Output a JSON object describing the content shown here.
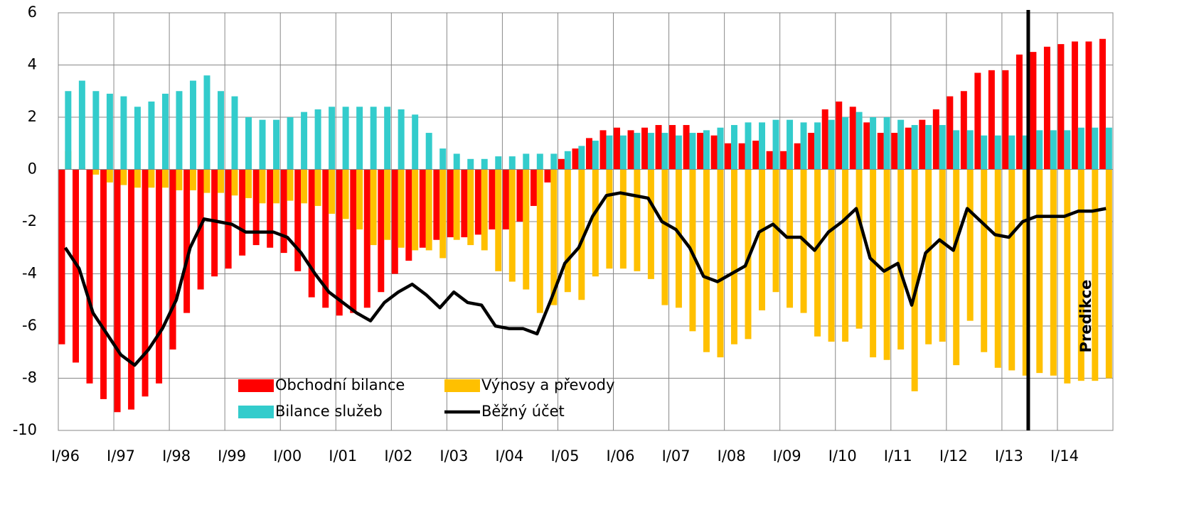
{
  "chart_data": {
    "type": "bar",
    "categories": [
      "I/96",
      null,
      null,
      null,
      "I/97",
      null,
      null,
      null,
      "I/98",
      null,
      null,
      null,
      "I/99",
      null,
      null,
      null,
      "I/00",
      null,
      null,
      null,
      "I/01",
      null,
      null,
      null,
      "I/02",
      null,
      null,
      null,
      "I/03",
      null,
      null,
      null,
      "I/04",
      null,
      null,
      null,
      "I/05",
      null,
      null,
      null,
      "I/06",
      null,
      null,
      null,
      "I/07",
      null,
      null,
      null,
      "I/08",
      null,
      null,
      null,
      "I/09",
      null,
      null,
      null,
      "I/10",
      null,
      null,
      null,
      "I/11",
      null,
      null,
      null,
      "I/12",
      null,
      null,
      null,
      "I/13",
      null,
      null,
      null,
      "I/14",
      null,
      null,
      null
    ],
    "series": [
      {
        "name": "Obchodní bilance",
        "type": "bar",
        "color": "#ff0000",
        "values": [
          -6.7,
          -7.4,
          -8.2,
          -8.8,
          -9.3,
          -9.2,
          -8.7,
          -8.2,
          -6.9,
          -5.5,
          -4.6,
          -4.1,
          -3.8,
          -3.3,
          -2.9,
          -3.0,
          -3.2,
          -3.9,
          -4.9,
          -5.3,
          -5.6,
          -5.5,
          -5.3,
          -4.7,
          -4.0,
          -3.5,
          -3.0,
          -2.7,
          -2.6,
          -2.6,
          -2.5,
          -2.3,
          -2.3,
          -2.0,
          -1.4,
          -0.5,
          0.4,
          0.8,
          1.2,
          1.5,
          1.6,
          1.5,
          1.6,
          1.7,
          1.7,
          1.7,
          1.4,
          1.3,
          1.0,
          1.0,
          1.1,
          0.7,
          0.7,
          1.0,
          1.4,
          2.3,
          2.6,
          2.4,
          1.8,
          1.4,
          1.4,
          1.6,
          1.9,
          2.3,
          2.8,
          3.0,
          3.7,
          3.8,
          3.8,
          4.4,
          4.5,
          4.7,
          4.8,
          4.9,
          4.9,
          5.0
        ]
      },
      {
        "name": "Výnosy a převody",
        "type": "bar",
        "color": "#ffc000",
        "values": [
          0.7,
          0.1,
          -0.2,
          -0.5,
          -0.6,
          -0.7,
          -0.7,
          -0.7,
          -0.8,
          -0.8,
          -0.9,
          -0.9,
          -1.0,
          -1.1,
          -1.3,
          -1.3,
          -1.2,
          -1.3,
          -1.4,
          -1.7,
          -1.9,
          -2.3,
          -2.9,
          -2.7,
          -3.0,
          -3.1,
          -3.1,
          -3.4,
          -2.7,
          -2.9,
          -3.1,
          -3.9,
          -4.3,
          -4.6,
          -5.5,
          -5.2,
          -4.7,
          -5.0,
          -4.1,
          -3.8,
          -3.8,
          -3.9,
          -4.2,
          -5.2,
          -5.3,
          -6.2,
          -7.0,
          -7.2,
          -6.7,
          -6.5,
          -5.4,
          -4.7,
          -5.3,
          -5.5,
          -6.4,
          -6.6,
          -6.6,
          -6.1,
          -7.2,
          -7.3,
          -6.9,
          -8.5,
          -6.7,
          -6.6,
          -7.5,
          -5.8,
          -7.0,
          -7.6,
          -7.7,
          -7.9,
          -7.8,
          -7.9,
          -8.2,
          -8.1,
          -8.1,
          -8.0
        ]
      },
      {
        "name": "Bilance služeb",
        "type": "bar",
        "color": "#33cccc",
        "values": [
          3.0,
          3.4,
          3.0,
          2.9,
          2.8,
          2.4,
          2.6,
          2.9,
          3.0,
          3.4,
          3.6,
          3.0,
          2.8,
          2.0,
          1.9,
          1.9,
          2.0,
          2.2,
          2.3,
          2.4,
          2.4,
          2.4,
          2.4,
          2.4,
          2.3,
          2.1,
          1.4,
          0.8,
          0.6,
          0.4,
          0.4,
          0.5,
          0.5,
          0.6,
          0.6,
          0.6,
          0.7,
          0.9,
          1.1,
          1.3,
          1.3,
          1.4,
          1.4,
          1.4,
          1.3,
          1.4,
          1.5,
          1.6,
          1.7,
          1.8,
          1.8,
          1.9,
          1.9,
          1.8,
          1.8,
          1.9,
          2.0,
          2.2,
          2.0,
          2.0,
          1.9,
          1.7,
          1.7,
          1.7,
          1.5,
          1.5,
          1.3,
          1.3,
          1.3,
          1.3,
          1.5,
          1.5,
          1.5,
          1.6,
          1.6,
          1.6
        ]
      },
      {
        "name": "Běžný účet",
        "type": "line",
        "color": "#000000",
        "values": [
          -3.0,
          -3.8,
          -5.5,
          -6.3,
          -7.1,
          -7.5,
          -6.9,
          -6.1,
          -5.0,
          -3.0,
          -1.9,
          -2.0,
          -2.1,
          -2.4,
          -2.4,
          -2.4,
          -2.6,
          -3.2,
          -4.0,
          -4.7,
          -5.1,
          -5.5,
          -5.8,
          -5.1,
          -4.7,
          -4.4,
          -4.8,
          -5.3,
          -4.7,
          -5.1,
          -5.2,
          -6.0,
          -6.1,
          -6.1,
          -6.3,
          -5.0,
          -3.6,
          -3.0,
          -1.8,
          -1.0,
          -0.9,
          -1.0,
          -1.1,
          -2.0,
          -2.3,
          -3.0,
          -4.1,
          -4.3,
          -4.0,
          -3.7,
          -2.4,
          -2.1,
          -2.6,
          -2.6,
          -3.1,
          -2.4,
          -2.0,
          -1.5,
          -3.4,
          -3.9,
          -3.6,
          -5.2,
          -3.2,
          -2.7,
          -3.1,
          -1.5,
          -2.0,
          -2.5,
          -2.6,
          -2.0,
          -1.8,
          -1.8,
          -1.8,
          -1.6,
          -1.6,
          -1.5
        ]
      }
    ],
    "ylim": [
      -10,
      6
    ],
    "yticks": [
      -10,
      -8,
      -6,
      -4,
      -2,
      0,
      2,
      4,
      6
    ],
    "grid": true,
    "legend": "bottom",
    "annotation": "Predikce"
  }
}
